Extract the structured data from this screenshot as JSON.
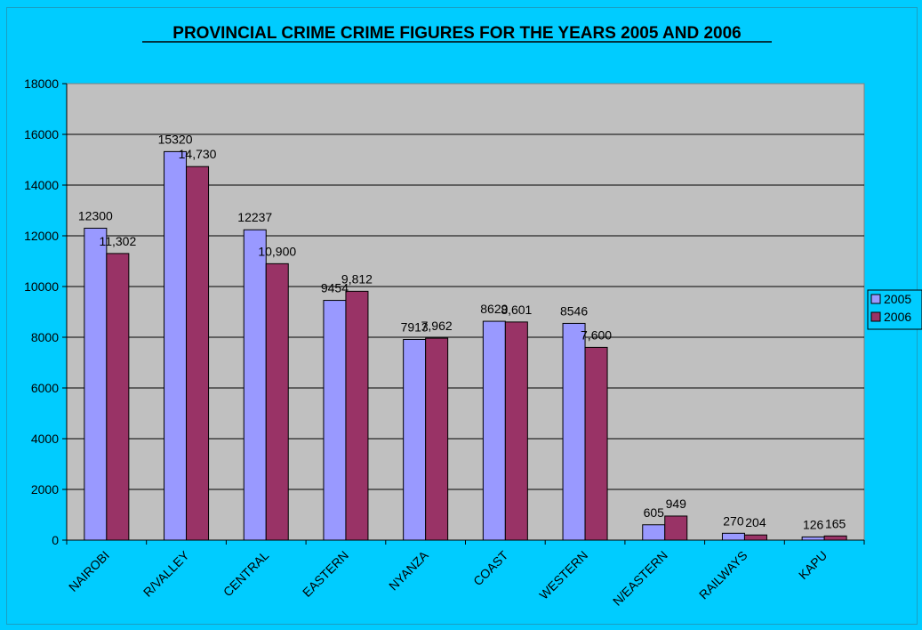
{
  "chart_data": {
    "type": "bar",
    "title": "PROVINCIAL CRIME CRIME  FIGURES FOR THE YEARS 2005 AND 2006",
    "xlabel": "",
    "ylabel": "",
    "ylim": [
      0,
      18000
    ],
    "yticks": [
      "0",
      "2000",
      "4000",
      "6000",
      "8000",
      "10000",
      "12000",
      "14000",
      "16000",
      "18000"
    ],
    "grid": true,
    "legend_position": "right",
    "categories": [
      "NAIROBI",
      "R/VALLEY",
      "CENTRAL",
      "EASTERN",
      "NYANZA",
      "COAST",
      "WESTERN",
      "N/EASTERN",
      "RAILWAYS",
      "KAPU"
    ],
    "series": [
      {
        "name": "2005",
        "color": "#9999ff",
        "values": [
          12300,
          15320,
          12237,
          9454,
          7913,
          8629,
          8546,
          605,
          270,
          126
        ],
        "labels": [
          "12300",
          "15320",
          "12237",
          "9454",
          "7913",
          "8629",
          "8546",
          "605",
          "270",
          "126"
        ]
      },
      {
        "name": "2006",
        "color": "#993366",
        "values": [
          11302,
          14730,
          10900,
          9812,
          7962,
          8601,
          7600,
          949,
          204,
          165
        ],
        "labels": [
          "11,302",
          "14,730",
          "10,900",
          "9,812",
          "7,962",
          "8,601",
          "7,600",
          "949",
          "204",
          "165"
        ]
      }
    ],
    "colors": {
      "background": "#00ccff",
      "plot_area": "#c0c0c0"
    }
  }
}
